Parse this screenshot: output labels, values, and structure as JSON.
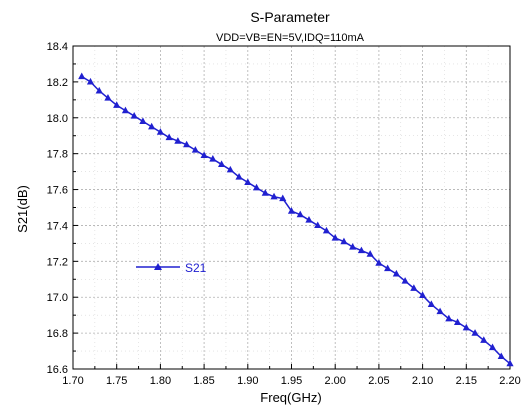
{
  "chart_data": {
    "type": "line",
    "title": "S-Parameter",
    "subtitle": "VDD=VB=EN=5V,IDQ=110mA",
    "xlabel": "Freq(GHz)",
    "ylabel": "S21(dB)",
    "xlim": [
      1.7,
      2.2
    ],
    "ylim": [
      16.6,
      18.4
    ],
    "xticks": [
      "1.70",
      "1.75",
      "1.80",
      "1.85",
      "1.90",
      "1.95",
      "2.00",
      "2.05",
      "2.10",
      "2.15",
      "2.20"
    ],
    "yticks": [
      "16.6",
      "16.8",
      "17.0",
      "17.2",
      "17.4",
      "17.6",
      "17.8",
      "18.0",
      "18.2",
      "18.4"
    ],
    "grid": true,
    "legend_position": "middle-left",
    "series": [
      {
        "name": "S21",
        "color": "#2020d0",
        "marker": "triangle",
        "x": [
          1.71,
          1.72,
          1.73,
          1.74,
          1.75,
          1.76,
          1.77,
          1.78,
          1.79,
          1.8,
          1.81,
          1.82,
          1.83,
          1.84,
          1.85,
          1.86,
          1.87,
          1.88,
          1.89,
          1.9,
          1.91,
          1.92,
          1.93,
          1.94,
          1.95,
          1.96,
          1.97,
          1.98,
          1.99,
          2.0,
          2.01,
          2.02,
          2.03,
          2.04,
          2.05,
          2.06,
          2.07,
          2.08,
          2.09,
          2.1,
          2.11,
          2.12,
          2.13,
          2.14,
          2.15,
          2.16,
          2.17,
          2.18,
          2.19,
          2.2
        ],
        "y": [
          18.23,
          18.2,
          18.15,
          18.11,
          18.07,
          18.04,
          18.01,
          17.98,
          17.95,
          17.92,
          17.89,
          17.87,
          17.85,
          17.82,
          17.79,
          17.77,
          17.74,
          17.71,
          17.67,
          17.64,
          17.61,
          17.58,
          17.56,
          17.55,
          17.48,
          17.46,
          17.43,
          17.4,
          17.37,
          17.33,
          17.31,
          17.28,
          17.26,
          17.24,
          17.19,
          17.16,
          17.13,
          17.09,
          17.05,
          17.01,
          16.96,
          16.92,
          16.88,
          16.86,
          16.83,
          16.8,
          16.76,
          16.72,
          16.67,
          16.63
        ]
      }
    ]
  }
}
